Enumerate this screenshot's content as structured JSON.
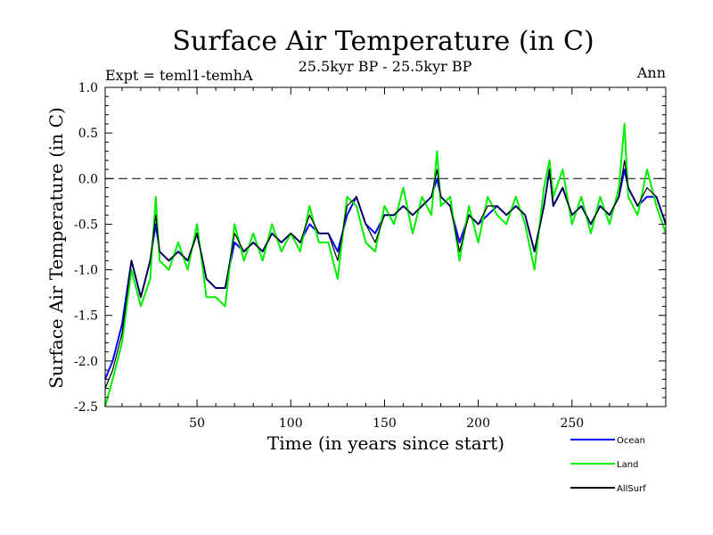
{
  "chart_data": {
    "type": "line",
    "title": "Surface Air Temperature (in C)",
    "subtitle": "25.5kyr BP - 25.5kyr BP",
    "left_label": "Expt = teml1-temhA",
    "right_label": "Ann",
    "xlabel": "Time (in years since start)",
    "ylabel": "Surface Air Temperature (in C)",
    "xlim": [
      1,
      300
    ],
    "ylim": [
      -2.5,
      1.0
    ],
    "x_ticks": [
      50,
      100,
      150,
      200,
      250
    ],
    "x_tick_labels": [
      "50",
      "100",
      "150",
      "200",
      "250"
    ],
    "y_ticks": [
      -2.5,
      -2.0,
      -1.5,
      -1.0,
      -0.5,
      0.0,
      0.5,
      1.0
    ],
    "y_tick_labels": [
      "-2.5",
      "-2.0",
      "-1.5",
      "-1.0",
      "-0.5",
      "0.0",
      "0.5",
      "1.0"
    ],
    "reference_line": 0.0,
    "series": [
      {
        "name": "Ocean",
        "color": "#0000ff",
        "x": [
          1,
          5,
          10,
          15,
          20,
          25,
          28,
          30,
          35,
          40,
          45,
          50,
          55,
          60,
          65,
          70,
          75,
          80,
          85,
          90,
          95,
          100,
          105,
          110,
          115,
          120,
          125,
          130,
          135,
          140,
          145,
          150,
          155,
          160,
          165,
          170,
          175,
          178,
          180,
          185,
          190,
          195,
          200,
          205,
          210,
          215,
          220,
          225,
          230,
          235,
          238,
          240,
          245,
          250,
          255,
          260,
          265,
          270,
          275,
          278,
          280,
          285,
          290,
          295,
          300
        ],
        "values": [
          -2.2,
          -2.0,
          -1.6,
          -0.9,
          -1.3,
          -0.9,
          -0.5,
          -0.8,
          -0.9,
          -0.8,
          -0.9,
          -0.6,
          -1.1,
          -1.2,
          -1.2,
          -0.7,
          -0.8,
          -0.7,
          -0.8,
          -0.6,
          -0.7,
          -0.6,
          -0.7,
          -0.5,
          -0.6,
          -0.6,
          -0.8,
          -0.4,
          -0.2,
          -0.5,
          -0.6,
          -0.4,
          -0.4,
          -0.3,
          -0.4,
          -0.3,
          -0.2,
          0.0,
          -0.2,
          -0.3,
          -0.7,
          -0.4,
          -0.5,
          -0.4,
          -0.3,
          -0.4,
          -0.3,
          -0.4,
          -0.8,
          -0.3,
          0.1,
          -0.3,
          -0.1,
          -0.4,
          -0.3,
          -0.5,
          -0.3,
          -0.4,
          -0.2,
          0.1,
          -0.1,
          -0.3,
          -0.2,
          -0.2,
          -0.5
        ]
      },
      {
        "name": "Land",
        "color": "#00ee00",
        "x": [
          1,
          5,
          10,
          15,
          20,
          25,
          28,
          30,
          35,
          40,
          45,
          50,
          55,
          60,
          65,
          70,
          75,
          80,
          85,
          90,
          95,
          100,
          105,
          110,
          115,
          120,
          125,
          130,
          135,
          140,
          145,
          150,
          155,
          160,
          165,
          170,
          175,
          178,
          180,
          185,
          190,
          195,
          200,
          205,
          210,
          215,
          220,
          225,
          230,
          235,
          238,
          240,
          245,
          250,
          255,
          260,
          265,
          270,
          275,
          278,
          280,
          285,
          290,
          295,
          300
        ],
        "values": [
          -2.5,
          -2.2,
          -1.8,
          -1.0,
          -1.4,
          -1.1,
          -0.2,
          -0.9,
          -1.0,
          -0.7,
          -1.0,
          -0.5,
          -1.3,
          -1.3,
          -1.4,
          -0.5,
          -0.9,
          -0.6,
          -0.9,
          -0.5,
          -0.8,
          -0.6,
          -0.8,
          -0.3,
          -0.7,
          -0.7,
          -1.1,
          -0.2,
          -0.3,
          -0.7,
          -0.8,
          -0.3,
          -0.5,
          -0.1,
          -0.6,
          -0.2,
          -0.4,
          0.3,
          -0.3,
          -0.2,
          -0.9,
          -0.3,
          -0.7,
          -0.2,
          -0.4,
          -0.5,
          -0.2,
          -0.5,
          -1.0,
          -0.1,
          0.2,
          -0.2,
          0.1,
          -0.5,
          -0.2,
          -0.6,
          -0.2,
          -0.5,
          -0.1,
          0.6,
          -0.2,
          -0.4,
          0.1,
          -0.3,
          -0.6
        ]
      },
      {
        "name": "AllSurf",
        "color": "#000000",
        "x": [
          1,
          5,
          10,
          15,
          20,
          25,
          28,
          30,
          35,
          40,
          45,
          50,
          55,
          60,
          65,
          70,
          75,
          80,
          85,
          90,
          95,
          100,
          105,
          110,
          115,
          120,
          125,
          130,
          135,
          140,
          145,
          150,
          155,
          160,
          165,
          170,
          175,
          178,
          180,
          185,
          190,
          195,
          200,
          205,
          210,
          215,
          220,
          225,
          230,
          235,
          238,
          240,
          245,
          250,
          255,
          260,
          265,
          270,
          275,
          278,
          280,
          285,
          290,
          295,
          300
        ],
        "values": [
          -2.3,
          -2.1,
          -1.7,
          -0.9,
          -1.3,
          -0.9,
          -0.4,
          -0.8,
          -0.9,
          -0.8,
          -0.9,
          -0.6,
          -1.1,
          -1.2,
          -1.2,
          -0.6,
          -0.8,
          -0.7,
          -0.8,
          -0.6,
          -0.7,
          -0.6,
          -0.7,
          -0.4,
          -0.6,
          -0.6,
          -0.9,
          -0.3,
          -0.2,
          -0.5,
          -0.7,
          -0.4,
          -0.4,
          -0.3,
          -0.4,
          -0.3,
          -0.2,
          0.1,
          -0.2,
          -0.3,
          -0.8,
          -0.4,
          -0.5,
          -0.3,
          -0.3,
          -0.4,
          -0.3,
          -0.4,
          -0.8,
          -0.3,
          0.1,
          -0.3,
          -0.1,
          -0.4,
          -0.3,
          -0.5,
          -0.3,
          -0.4,
          -0.2,
          0.2,
          -0.1,
          -0.3,
          -0.1,
          -0.2,
          -0.5
        ]
      }
    ],
    "legend": [
      {
        "name": "Ocean",
        "color": "#0000ff"
      },
      {
        "name": "Land",
        "color": "#00ee00"
      },
      {
        "name": "AllSurf",
        "color": "#000000"
      }
    ],
    "legend_position": "bottom-right"
  }
}
